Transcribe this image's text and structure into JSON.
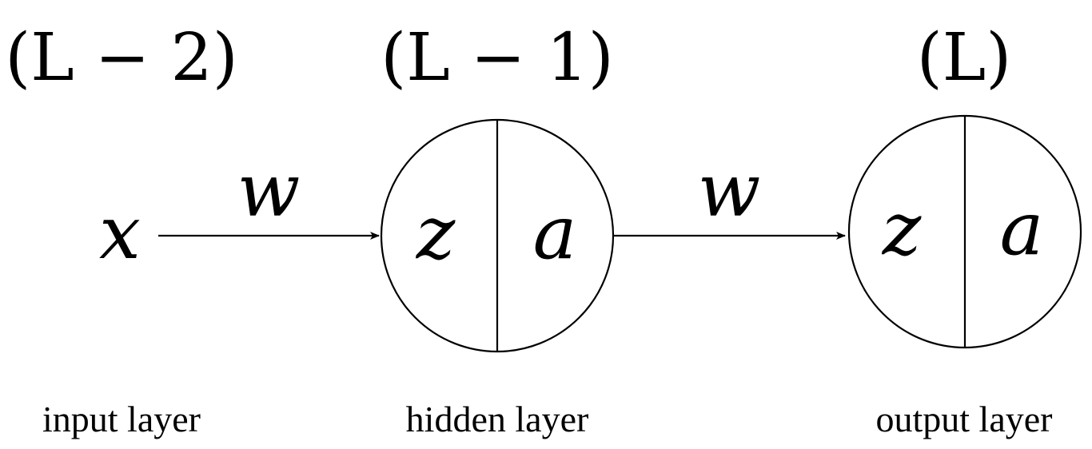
{
  "layers": [
    {
      "index_label": "(L − 2)",
      "caption": "input layer",
      "symbol": "x"
    },
    {
      "index_label": "(L − 1)",
      "caption": "hidden layer",
      "left_symbol": "z",
      "right_symbol": "a"
    },
    {
      "index_label": "(L)",
      "caption": "output layer",
      "left_symbol": "z",
      "right_symbol": "a"
    }
  ],
  "connections": [
    {
      "label": "w"
    },
    {
      "label": "w"
    }
  ]
}
